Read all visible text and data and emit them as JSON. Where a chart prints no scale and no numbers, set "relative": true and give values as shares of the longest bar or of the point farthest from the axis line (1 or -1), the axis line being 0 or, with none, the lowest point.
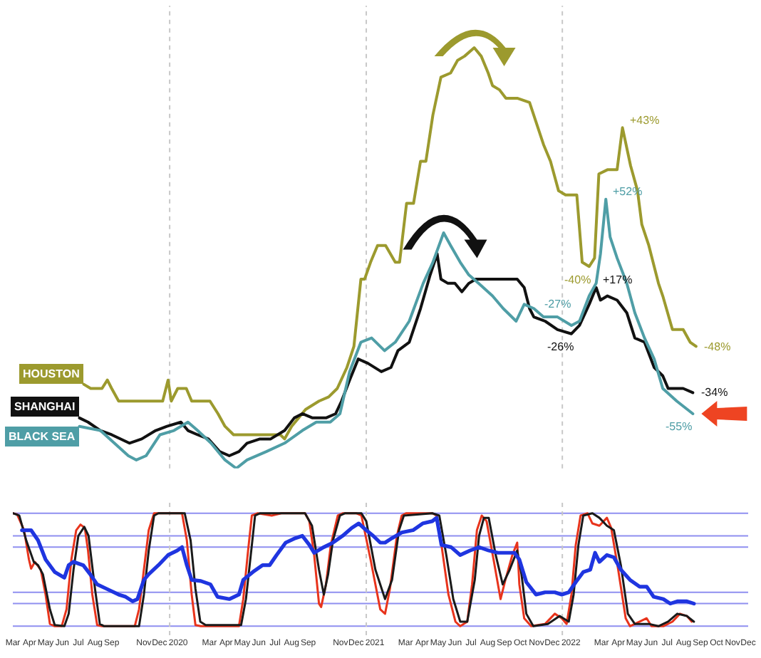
{
  "chart_data": [
    {
      "type": "line",
      "relative": true,
      "xlim": [
        "2019-03-15",
        "2022-12-13"
      ],
      "tick_labels": false,
      "series": [
        {
          "name": "HOUSTON",
          "color": "#9c9a2e",
          "x": [
            "2019-07-25",
            "2019-08-07",
            "2019-08-28",
            "2019-09-07",
            "2019-09-15",
            "2019-09-28",
            "2019-12-19",
            "2019-12-29",
            "2020-01-04",
            "2020-01-16",
            "2020-02-01",
            "2020-02-11",
            "2020-03-16",
            "2020-03-31",
            "2020-04-13",
            "2020-04-29",
            "2020-07-25",
            "2020-08-02",
            "2020-08-15",
            "2020-08-28",
            "2020-09-10",
            "2020-10-05",
            "2020-10-23",
            "2020-11-08",
            "2020-11-26",
            "2020-12-09",
            "2020-12-22",
            "2020-12-29",
            "2021-01-09",
            "2021-01-22",
            "2021-02-06",
            "2021-02-24",
            "2021-03-04",
            "2021-03-17",
            "2021-03-30",
            "2021-04-12",
            "2021-04-22",
            "2021-05-05",
            "2021-05-20",
            "2021-06-07",
            "2021-06-20",
            "2021-07-03",
            "2021-07-21",
            "2021-08-03",
            "2021-08-16",
            "2021-08-24",
            "2021-09-06",
            "2021-09-18",
            "2021-10-09",
            "2021-11-01",
            "2021-11-14",
            "2021-11-27",
            "2021-12-10",
            "2021-12-25",
            "2022-01-07",
            "2022-01-28",
            "2022-02-07",
            "2022-02-20",
            "2022-03-02",
            "2022-03-10",
            "2022-03-26",
            "2022-04-13",
            "2022-04-23",
            "2022-05-08",
            "2022-05-21",
            "2022-05-29",
            "2022-06-11",
            "2022-06-29",
            "2022-07-07",
            "2022-07-25",
            "2022-08-14",
            "2022-08-27",
            "2022-09-07"
          ],
          "values": [
            0.2,
            0.19,
            0.19,
            0.21,
            0.19,
            0.16,
            0.16,
            0.21,
            0.16,
            0.19,
            0.19,
            0.16,
            0.16,
            0.13,
            0.1,
            0.08,
            0.08,
            0.07,
            0.1,
            0.12,
            0.14,
            0.16,
            0.17,
            0.19,
            0.24,
            0.29,
            0.45,
            0.45,
            0.49,
            0.53,
            0.53,
            0.49,
            0.49,
            0.63,
            0.63,
            0.73,
            0.73,
            0.84,
            0.93,
            0.94,
            0.97,
            0.98,
            1.0,
            0.98,
            0.94,
            0.91,
            0.9,
            0.88,
            0.88,
            0.87,
            0.82,
            0.77,
            0.73,
            0.66,
            0.65,
            0.65,
            0.49,
            0.48,
            0.5,
            0.7,
            0.71,
            0.71,
            0.81,
            0.72,
            0.66,
            0.58,
            0.53,
            0.44,
            0.41,
            0.33,
            0.33,
            0.3,
            0.29
          ]
        },
        {
          "name": "SHANGHAI",
          "color": "#111111",
          "x": [
            "2019-07-17",
            "2019-08-02",
            "2019-08-25",
            "2019-09-15",
            "2019-10-18",
            "2019-11-10",
            "2019-12-06",
            "2019-12-27",
            "2020-01-22",
            "2020-02-04",
            "2020-02-22",
            "2020-03-13",
            "2020-04-03",
            "2020-04-21",
            "2020-05-09",
            "2020-05-24",
            "2020-06-17",
            "2020-07-07",
            "2020-08-02",
            "2020-08-20",
            "2020-09-04",
            "2020-09-23",
            "2020-10-18",
            "2020-11-05",
            "2020-11-16",
            "2020-12-01",
            "2020-12-17",
            "2021-01-04",
            "2021-01-29",
            "2021-02-16",
            "2021-03-01",
            "2021-03-22",
            "2021-04-12",
            "2021-04-30",
            "2021-05-13",
            "2021-05-20",
            "2021-06-02",
            "2021-06-15",
            "2021-06-28",
            "2021-07-11",
            "2021-07-24",
            "2021-08-16",
            "2021-09-06",
            "2021-09-26",
            "2021-10-09",
            "2021-10-22",
            "2021-11-01",
            "2021-11-09",
            "2021-11-30",
            "2021-12-23",
            "2022-01-18",
            "2022-02-02",
            "2022-02-20",
            "2022-03-05",
            "2022-03-13",
            "2022-03-26",
            "2022-04-13",
            "2022-05-01",
            "2022-05-16",
            "2022-06-03",
            "2022-06-21",
            "2022-07-07",
            "2022-07-17",
            "2022-07-30",
            "2022-08-14",
            "2022-09-01"
          ],
          "values": [
            0.12,
            0.11,
            0.09,
            0.08,
            0.06,
            0.07,
            0.09,
            0.1,
            0.11,
            0.09,
            0.08,
            0.07,
            0.04,
            0.03,
            0.04,
            0.06,
            0.07,
            0.07,
            0.09,
            0.12,
            0.13,
            0.12,
            0.12,
            0.13,
            0.16,
            0.21,
            0.26,
            0.25,
            0.23,
            0.24,
            0.28,
            0.3,
            0.38,
            0.46,
            0.51,
            0.45,
            0.44,
            0.44,
            0.42,
            0.44,
            0.45,
            0.45,
            0.45,
            0.45,
            0.45,
            0.43,
            0.38,
            0.36,
            0.35,
            0.33,
            0.32,
            0.34,
            0.39,
            0.43,
            0.4,
            0.41,
            0.4,
            0.37,
            0.31,
            0.3,
            0.24,
            0.22,
            0.19,
            0.19,
            0.19,
            0.18
          ]
        },
        {
          "name": "BLACK SEA",
          "color": "#4f9ea6",
          "x": [
            "2019-07-17",
            "2019-08-25",
            "2019-09-20",
            "2019-10-16",
            "2019-10-31",
            "2019-11-18",
            "2019-12-14",
            "2020-01-09",
            "2020-02-04",
            "2020-02-22",
            "2020-03-18",
            "2020-04-13",
            "2020-05-04",
            "2020-05-24",
            "2020-06-29",
            "2020-08-02",
            "2020-09-04",
            "2020-09-30",
            "2020-10-26",
            "2020-11-13",
            "2020-12-01",
            "2020-12-22",
            "2021-01-11",
            "2021-02-04",
            "2021-02-24",
            "2021-03-22",
            "2021-04-17",
            "2021-05-05",
            "2021-05-25",
            "2021-06-07",
            "2021-06-25",
            "2021-07-11",
            "2021-07-29",
            "2021-08-24",
            "2021-09-13",
            "2021-10-07",
            "2021-10-22",
            "2021-11-09",
            "2021-11-27",
            "2021-12-23",
            "2022-01-18",
            "2022-02-02",
            "2022-02-20",
            "2022-03-05",
            "2022-03-13",
            "2022-03-23",
            "2022-03-31",
            "2022-04-13",
            "2022-05-01",
            "2022-05-16",
            "2022-06-03",
            "2022-06-21",
            "2022-07-07",
            "2022-08-02",
            "2022-09-01"
          ],
          "values": [
            0.1,
            0.09,
            0.06,
            0.03,
            0.02,
            0.03,
            0.08,
            0.09,
            0.11,
            0.09,
            0.06,
            0.02,
            0.0,
            0.02,
            0.04,
            0.06,
            0.09,
            0.11,
            0.11,
            0.13,
            0.23,
            0.3,
            0.31,
            0.28,
            0.3,
            0.35,
            0.44,
            0.49,
            0.56,
            0.53,
            0.49,
            0.46,
            0.44,
            0.41,
            0.38,
            0.35,
            0.39,
            0.38,
            0.36,
            0.36,
            0.34,
            0.35,
            0.41,
            0.44,
            0.51,
            0.64,
            0.55,
            0.5,
            0.44,
            0.37,
            0.31,
            0.26,
            0.19,
            0.16,
            0.13
          ]
        }
      ],
      "annotations": [
        {
          "text": "-40%",
          "x": "2022-02-20",
          "y": 0.48
        },
        {
          "text": "+43%",
          "x": "2022-04-23",
          "y": 0.81
        },
        {
          "text": "-48%",
          "x": "2022-09-07",
          "y": 0.29
        },
        {
          "text": "-26%",
          "x": "2022-01-18",
          "y": 0.32
        },
        {
          "text": "+17%",
          "x": "2022-03-05",
          "y": 0.43
        },
        {
          "text": "-34%",
          "x": "2022-09-01",
          "y": 0.18
        },
        {
          "text": "-27%",
          "x": "2021-12-23",
          "y": 0.36
        },
        {
          "text": "+52%",
          "x": "2022-03-23",
          "y": 0.64
        },
        {
          "text": "-55%",
          "x": "2022-09-01",
          "y": 0.13
        }
      ],
      "ref_lines": [
        {
          "axis": "x",
          "value": "2020-01-01",
          "color": "#c8c8c8",
          "line_style": "dotted"
        },
        {
          "axis": "x",
          "value": "2021-01-01",
          "color": "#c8c8c8",
          "line_style": "dotted"
        },
        {
          "axis": "x",
          "value": "2022-01-01",
          "color": "#c8c8c8",
          "line_style": "dotted"
        }
      ]
    },
    {
      "type": "line",
      "relative": true,
      "xlim": [
        "2019-03-15",
        "2022-12-13"
      ],
      "tick_labels": "x",
      "xticks": [
        {
          "value": "2019-03-15",
          "label": "Mar"
        },
        {
          "value": "2019-04-15",
          "label": "Apr"
        },
        {
          "value": "2019-05-15",
          "label": "May"
        },
        {
          "value": "2019-06-15",
          "label": "Jun"
        },
        {
          "value": "2019-07-15",
          "label": "Jul"
        },
        {
          "value": "2019-08-15",
          "label": "Aug"
        },
        {
          "value": "2019-09-15",
          "label": "Sep"
        },
        {
          "value": "2019-11-14",
          "label": "Nov"
        },
        {
          "value": "2019-12-13",
          "label": "Dec"
        },
        {
          "value": "2020-01-17",
          "label": "2020"
        },
        {
          "value": "2020-03-15",
          "label": "Mar"
        },
        {
          "value": "2020-04-15",
          "label": "Apr"
        },
        {
          "value": "2020-05-15",
          "label": "May"
        },
        {
          "value": "2020-06-15",
          "label": "Jun"
        },
        {
          "value": "2020-07-15",
          "label": "Jul"
        },
        {
          "value": "2020-08-15",
          "label": "Aug"
        },
        {
          "value": "2020-09-15",
          "label": "Sep"
        },
        {
          "value": "2020-11-14",
          "label": "Nov"
        },
        {
          "value": "2020-12-13",
          "label": "Dec"
        },
        {
          "value": "2021-01-17",
          "label": "2021"
        },
        {
          "value": "2021-03-15",
          "label": "Mar"
        },
        {
          "value": "2021-04-15",
          "label": "Apr"
        },
        {
          "value": "2021-05-15",
          "label": "May"
        },
        {
          "value": "2021-06-15",
          "label": "Jun"
        },
        {
          "value": "2021-07-15",
          "label": "Jul"
        },
        {
          "value": "2021-08-15",
          "label": "Aug"
        },
        {
          "value": "2021-09-15",
          "label": "Sep"
        },
        {
          "value": "2021-10-15",
          "label": "Oct"
        },
        {
          "value": "2021-11-14",
          "label": "Nov"
        },
        {
          "value": "2021-12-13",
          "label": "Dec"
        },
        {
          "value": "2022-01-17",
          "label": "2022"
        },
        {
          "value": "2022-03-15",
          "label": "Mar"
        },
        {
          "value": "2022-04-15",
          "label": "Apr"
        },
        {
          "value": "2022-05-15",
          "label": "May"
        },
        {
          "value": "2022-06-15",
          "label": "Jun"
        },
        {
          "value": "2022-07-15",
          "label": "Jul"
        },
        {
          "value": "2022-08-15",
          "label": "Aug"
        },
        {
          "value": "2022-09-15",
          "label": "Sep"
        },
        {
          "value": "2022-10-15",
          "label": "Oct"
        },
        {
          "value": "2022-11-14",
          "label": "Nov"
        },
        {
          "value": "2022-12-13",
          "label": "Dec"
        }
      ],
      "series": [
        {
          "color": "#e8341c",
          "x": [
            "2019-03-15",
            "2019-03-23",
            "2019-04-05",
            "2019-04-14",
            "2019-04-18",
            "2019-04-25",
            "2019-05-06",
            "2019-05-15",
            "2019-05-23",
            "2019-06-01",
            "2019-06-14",
            "2019-06-23",
            "2019-07-02",
            "2019-07-11",
            "2019-07-19",
            "2019-07-27",
            "2019-08-02",
            "2019-08-10",
            "2019-08-19",
            "2019-08-28",
            "2019-10-28",
            "2019-11-05",
            "2019-11-14",
            "2019-11-23",
            "2019-12-03",
            "2020-01-24",
            "2020-02-02",
            "2020-02-11",
            "2020-02-18",
            "2020-02-28",
            "2020-05-09",
            "2020-05-17",
            "2020-05-26",
            "2020-06-02",
            "2020-06-13",
            "2020-07-09",
            "2020-07-27",
            "2020-09-09",
            "2020-09-17",
            "2020-09-26",
            "2020-10-05",
            "2020-10-09",
            "2020-10-18",
            "2020-10-27",
            "2020-11-09",
            "2020-11-18",
            "2020-12-14",
            "2020-12-23",
            "2021-01-09",
            "2021-01-27",
            "2021-02-05",
            "2021-02-14",
            "2021-02-27",
            "2021-03-08",
            "2021-03-16",
            "2021-05-04",
            "2021-05-12",
            "2021-05-21",
            "2021-06-03",
            "2021-06-16",
            "2021-06-25",
            "2021-07-08",
            "2021-07-17",
            "2021-07-26",
            "2021-08-04",
            "2021-08-13",
            "2021-08-26",
            "2021-09-08",
            "2021-09-17",
            "2021-09-30",
            "2021-10-09",
            "2021-10-13",
            "2021-10-22",
            "2021-11-04",
            "2021-11-30",
            "2021-12-18",
            "2021-12-31",
            "2022-01-09",
            "2022-01-18",
            "2022-01-26",
            "2022-02-04",
            "2022-02-17",
            "2022-02-26",
            "2022-03-11",
            "2022-03-25",
            "2022-04-02",
            "2022-04-15",
            "2022-04-29",
            "2022-05-07",
            "2022-05-25",
            "2022-06-07",
            "2022-06-16",
            "2022-07-08",
            "2022-07-25",
            "2022-08-08",
            "2022-08-21",
            "2022-08-30"
          ],
          "values": [
            1.0,
            0.99,
            0.85,
            0.59,
            0.51,
            0.57,
            0.5,
            0.28,
            0.02,
            0,
            0,
            0.15,
            0.59,
            0.85,
            0.9,
            0.87,
            0.67,
            0.28,
            0.01,
            0,
            0,
            0.15,
            0.5,
            0.85,
            1.0,
            1.0,
            0.76,
            0.28,
            0.01,
            0,
            0,
            0.24,
            0.67,
            0.98,
            1.0,
            0.98,
            1.0,
            1.0,
            0.93,
            0.63,
            0.2,
            0.17,
            0.37,
            0.72,
            0.98,
            1.0,
            1.0,
            0.98,
            0.59,
            0.15,
            0.11,
            0.33,
            0.8,
            0.98,
            1.0,
            1.0,
            0.98,
            0.72,
            0.28,
            0.04,
            0,
            0.04,
            0.37,
            0.85,
            0.98,
            0.93,
            0.59,
            0.24,
            0.41,
            0.63,
            0.74,
            0.37,
            0.07,
            0,
            0.02,
            0.11,
            0.07,
            0.02,
            0.28,
            0.72,
            0.98,
            1.0,
            0.91,
            0.89,
            0.96,
            0.87,
            0.5,
            0.07,
            0,
            0.04,
            0.07,
            0,
            0,
            0.04,
            0.11,
            0.09,
            0.04
          ]
        },
        {
          "color": "#1a1a1a",
          "x": [
            "2019-03-15",
            "2019-03-27",
            "2019-04-09",
            "2019-04-23",
            "2019-05-01",
            "2019-05-10",
            "2019-05-23",
            "2019-06-01",
            "2019-06-19",
            "2019-06-27",
            "2019-07-06",
            "2019-07-15",
            "2019-07-26",
            "2019-08-03",
            "2019-08-15",
            "2019-08-24",
            "2019-09-01",
            "2019-11-05",
            "2019-11-14",
            "2019-11-23",
            "2019-12-03",
            "2019-12-11",
            "2020-01-29",
            "2020-02-09",
            "2020-02-18",
            "2020-02-27",
            "2020-03-08",
            "2020-05-13",
            "2020-05-22",
            "2020-05-31",
            "2020-06-08",
            "2020-06-17",
            "2020-09-09",
            "2020-09-22",
            "2020-10-05",
            "2020-10-14",
            "2020-10-22",
            "2020-10-31",
            "2020-11-13",
            "2020-11-22",
            "2020-12-23",
            "2021-01-01",
            "2021-01-18",
            "2021-02-05",
            "2021-02-18",
            "2021-03-03",
            "2021-03-12",
            "2021-05-04",
            "2021-05-17",
            "2021-05-30",
            "2021-06-12",
            "2021-06-25",
            "2021-07-08",
            "2021-07-22",
            "2021-07-30",
            "2021-08-08",
            "2021-08-17",
            "2021-08-30",
            "2021-09-12",
            "2021-09-25",
            "2021-10-09",
            "2021-10-17",
            "2021-10-26",
            "2021-11-08",
            "2021-12-05",
            "2021-12-27",
            "2022-01-13",
            "2022-01-22",
            "2022-01-31",
            "2022-02-09",
            "2022-02-26",
            "2022-03-11",
            "2022-03-25",
            "2022-04-07",
            "2022-04-20",
            "2022-05-03",
            "2022-05-16",
            "2022-06-11",
            "2022-06-29",
            "2022-07-17",
            "2022-08-03",
            "2022-08-21",
            "2022-09-03"
          ],
          "values": [
            1.0,
            0.98,
            0.76,
            0.57,
            0.54,
            0.46,
            0.15,
            0.01,
            0,
            0.11,
            0.5,
            0.8,
            0.88,
            0.8,
            0.33,
            0.02,
            0,
            0,
            0.28,
            0.67,
            0.98,
            1.0,
            1.0,
            0.76,
            0.33,
            0.04,
            0.01,
            0.01,
            0.24,
            0.63,
            0.98,
            1.0,
            1.0,
            0.89,
            0.5,
            0.28,
            0.46,
            0.76,
            0.98,
            1.0,
            1.0,
            0.93,
            0.5,
            0.24,
            0.41,
            0.85,
            0.98,
            1.0,
            0.98,
            0.63,
            0.24,
            0.04,
            0.04,
            0.41,
            0.8,
            0.96,
            0.96,
            0.63,
            0.37,
            0.5,
            0.67,
            0.46,
            0.11,
            0,
            0.02,
            0.09,
            0.04,
            0.28,
            0.72,
            0.98,
            1.0,
            0.96,
            0.89,
            0.85,
            0.54,
            0.11,
            0.02,
            0.02,
            0,
            0.04,
            0.11,
            0.09,
            0.04
          ]
        },
        {
          "color": "#1f35e0",
          "x": [
            "2019-04-01",
            "2019-04-18",
            "2019-05-01",
            "2019-05-15",
            "2019-06-01",
            "2019-06-19",
            "2019-06-27",
            "2019-07-06",
            "2019-07-24",
            "2019-08-06",
            "2019-08-19",
            "2019-09-06",
            "2019-09-28",
            "2019-10-11",
            "2019-10-24",
            "2019-11-02",
            "2019-11-14",
            "2019-11-23",
            "2019-12-11",
            "2019-12-29",
            "2020-01-15",
            "2020-01-24",
            "2020-02-02",
            "2020-02-11",
            "2020-02-28",
            "2020-03-17",
            "2020-03-30",
            "2020-04-21",
            "2020-05-09",
            "2020-05-17",
            "2020-06-04",
            "2020-06-22",
            "2020-07-05",
            "2020-07-18",
            "2020-08-04",
            "2020-08-22",
            "2020-09-04",
            "2020-09-17",
            "2020-09-26",
            "2020-10-14",
            "2020-10-31",
            "2020-11-18",
            "2020-12-05",
            "2020-12-18",
            "2021-01-01",
            "2021-01-14",
            "2021-01-27",
            "2021-02-05",
            "2021-02-18",
            "2021-03-08",
            "2021-03-29",
            "2021-04-16",
            "2021-05-04",
            "2021-05-12",
            "2021-05-21",
            "2021-06-08",
            "2021-06-25",
            "2021-07-13",
            "2021-07-30",
            "2021-08-17",
            "2021-09-03",
            "2021-09-21",
            "2021-10-04",
            "2021-10-13",
            "2021-10-26",
            "2021-11-13",
            "2021-11-30",
            "2021-12-18",
            "2021-12-31",
            "2022-01-13",
            "2022-01-26",
            "2022-02-09",
            "2022-02-22",
            "2022-03-03",
            "2022-03-11",
            "2022-03-25",
            "2022-04-07",
            "2022-04-20",
            "2022-05-07",
            "2022-05-25",
            "2022-06-07",
            "2022-06-20",
            "2022-07-08",
            "2022-07-21",
            "2022-08-03",
            "2022-08-21",
            "2022-09-03"
          ],
          "values": [
            0.85,
            0.85,
            0.76,
            0.59,
            0.48,
            0.43,
            0.54,
            0.57,
            0.54,
            0.46,
            0.37,
            0.33,
            0.28,
            0.26,
            0.22,
            0.24,
            0.41,
            0.46,
            0.54,
            0.63,
            0.67,
            0.7,
            0.54,
            0.41,
            0.4,
            0.37,
            0.26,
            0.24,
            0.28,
            0.41,
            0.48,
            0.54,
            0.54,
            0.63,
            0.74,
            0.78,
            0.8,
            0.72,
            0.65,
            0.7,
            0.74,
            0.8,
            0.87,
            0.91,
            0.85,
            0.8,
            0.74,
            0.74,
            0.78,
            0.83,
            0.85,
            0.91,
            0.93,
            0.96,
            0.72,
            0.7,
            0.63,
            0.67,
            0.7,
            0.67,
            0.65,
            0.65,
            0.65,
            0.59,
            0.39,
            0.28,
            0.3,
            0.3,
            0.28,
            0.3,
            0.39,
            0.48,
            0.5,
            0.65,
            0.57,
            0.63,
            0.61,
            0.5,
            0.41,
            0.35,
            0.35,
            0.26,
            0.24,
            0.2,
            0.22,
            0.22,
            0.2
          ]
        }
      ],
      "ref_lines": [
        {
          "axis": "y",
          "value": 1.0,
          "color": "#8f8ff0"
        },
        {
          "axis": "y",
          "value": 0.8,
          "color": "#8f8ff0"
        },
        {
          "axis": "y",
          "value": 0.7,
          "color": "#8f8ff0"
        },
        {
          "axis": "y",
          "value": 0.3,
          "color": "#8f8ff0"
        },
        {
          "axis": "y",
          "value": 0.2,
          "color": "#8f8ff0"
        },
        {
          "axis": "y",
          "value": 0.0,
          "color": "#8f8ff0"
        },
        {
          "axis": "x",
          "value": "2020-01-01",
          "color": "#c8c8c8",
          "line_style": "dotted"
        },
        {
          "axis": "x",
          "value": "2021-01-01",
          "color": "#c8c8c8",
          "line_style": "dotted"
        },
        {
          "axis": "x",
          "value": "2022-01-01",
          "color": "#c8c8c8",
          "line_style": "dotted"
        }
      ]
    }
  ]
}
